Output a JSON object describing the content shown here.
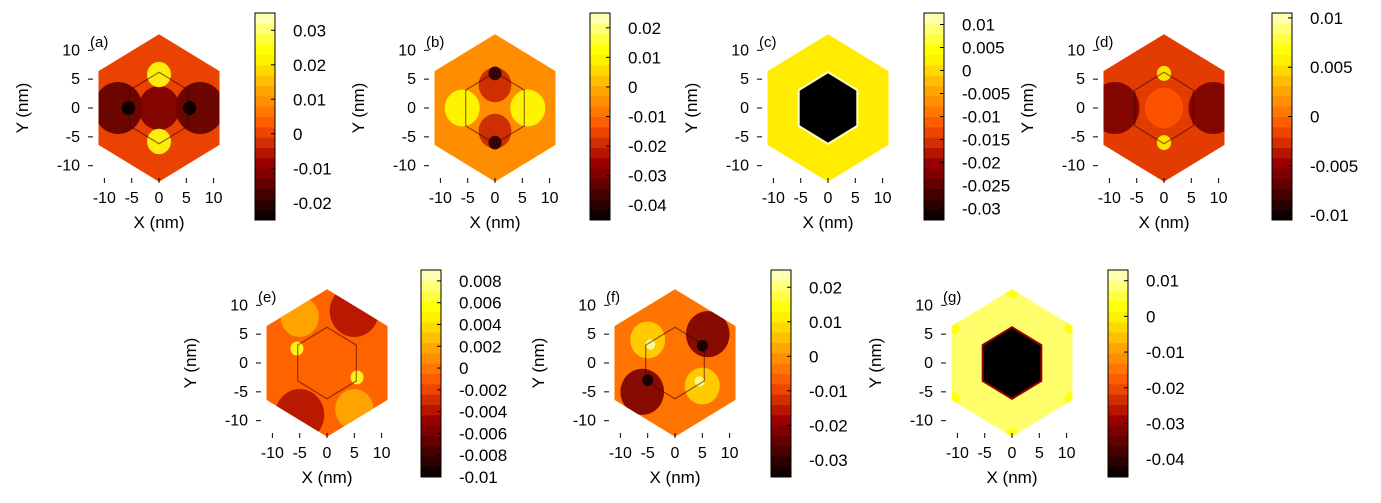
{
  "figure": {
    "panel_count": 7
  },
  "chart_data": [
    {
      "type": "heatmap",
      "panel": "(a)",
      "xlabel": "X (nm)",
      "ylabel": "Y (nm)",
      "xticks": [
        -10,
        -5,
        0,
        5,
        10
      ],
      "yticks": [
        -10,
        -5,
        0,
        5,
        10
      ],
      "xlim": [
        -13,
        13
      ],
      "ylim": [
        -13,
        13
      ],
      "colorbar": {
        "range": [
          -0.025,
          0.035
        ],
        "ticks": [
          "0.03",
          "0.02",
          "0.01",
          "0",
          "-0.01",
          "-0.02"
        ],
        "tick_values": [
          0.03,
          0.02,
          0.01,
          0,
          -0.01,
          -0.02
        ]
      },
      "background_level": 0.0,
      "inner_hexagon": null,
      "features": [
        {
          "kind": "blob",
          "x": -7.5,
          "y": 0,
          "r": 4.5,
          "level": -0.015
        },
        {
          "kind": "blob",
          "x": 7.5,
          "y": 0,
          "r": 4.5,
          "level": -0.015
        },
        {
          "kind": "blob",
          "x": 0,
          "y": 0,
          "r": 3.8,
          "level": -0.012
        },
        {
          "kind": "blob",
          "x": 0,
          "y": 5.8,
          "r": 2.2,
          "level": 0.025
        },
        {
          "kind": "blob",
          "x": 0,
          "y": -5.8,
          "r": 2.2,
          "level": 0.025
        },
        {
          "kind": "blob",
          "x": -5.6,
          "y": 0,
          "r": 1.2,
          "level": -0.025
        },
        {
          "kind": "blob",
          "x": 5.6,
          "y": 0,
          "r": 1.2,
          "level": -0.025
        }
      ]
    },
    {
      "type": "heatmap",
      "panel": "(b)",
      "xlabel": "X (nm)",
      "ylabel": "Y (nm)",
      "xticks": [
        -10,
        -5,
        0,
        5,
        10
      ],
      "yticks": [
        -10,
        -5,
        0,
        5,
        10
      ],
      "xlim": [
        -13,
        13
      ],
      "ylim": [
        -13,
        13
      ],
      "colorbar": {
        "range": [
          -0.045,
          0.025
        ],
        "ticks": [
          "0.02",
          "0.01",
          "0",
          "-0.01",
          "-0.02",
          "-0.03",
          "-0.04"
        ],
        "tick_values": [
          0.02,
          0.01,
          0,
          -0.01,
          -0.02,
          -0.03,
          -0.04
        ]
      },
      "background_level": -0.005,
      "inner_hexagon": null,
      "features": [
        {
          "kind": "blob",
          "x": -6,
          "y": 0,
          "r": 3.2,
          "level": 0.012
        },
        {
          "kind": "blob",
          "x": 6,
          "y": 0,
          "r": 3.2,
          "level": 0.012
        },
        {
          "kind": "blob",
          "x": 0,
          "y": 4,
          "r": 3,
          "level": -0.02
        },
        {
          "kind": "blob",
          "x": 0,
          "y": -4,
          "r": 3,
          "level": -0.02
        },
        {
          "kind": "blob",
          "x": 0,
          "y": 6,
          "r": 1.2,
          "level": -0.04
        },
        {
          "kind": "blob",
          "x": 0,
          "y": -6,
          "r": 1.2,
          "level": -0.04
        }
      ]
    },
    {
      "type": "heatmap",
      "panel": "(c)",
      "xlabel": "X (nm)",
      "ylabel": "Y (nm)",
      "xticks": [
        -10,
        -5,
        0,
        5,
        10
      ],
      "yticks": [
        -10,
        -5,
        0,
        5,
        10
      ],
      "xlim": [
        -13,
        13
      ],
      "ylim": [
        -13,
        13
      ],
      "colorbar": {
        "range": [
          -0.0325,
          0.0125
        ],
        "ticks": [
          "0.01",
          "0.005",
          "0",
          "-0.005",
          "-0.01",
          "-0.015",
          "-0.02",
          "-0.025",
          "-0.03"
        ],
        "tick_values": [
          0.01,
          0.005,
          0,
          -0.005,
          -0.01,
          -0.015,
          -0.02,
          -0.025,
          -0.03
        ]
      },
      "background_level": 0.002,
      "inner_hexagon": {
        "r": 6.2,
        "level": -0.0325,
        "edge_level": 0.012
      },
      "features": []
    },
    {
      "type": "heatmap",
      "panel": "(d)",
      "xlabel": "X (nm)",
      "ylabel": "Y (nm)",
      "xticks": [
        -10,
        -5,
        0,
        5,
        10
      ],
      "yticks": [
        -10,
        -5,
        0,
        5,
        10
      ],
      "xlim": [
        -13,
        13
      ],
      "ylim": [
        -13,
        13
      ],
      "colorbar": {
        "range": [
          -0.0105,
          0.0105
        ],
        "ticks": [
          "0.01",
          "0.005",
          "0",
          "-0.005",
          "-0.01"
        ],
        "tick_values": [
          0.01,
          0.005,
          0,
          -0.005,
          -0.01
        ]
      },
      "background_level": -0.002,
      "inner_hexagon": null,
      "features": [
        {
          "kind": "blob",
          "x": -9,
          "y": 0,
          "r": 4.5,
          "level": -0.006
        },
        {
          "kind": "blob",
          "x": 9,
          "y": 0,
          "r": 4.5,
          "level": -0.006
        },
        {
          "kind": "blob",
          "x": 0,
          "y": 0,
          "r": 3.5,
          "level": -0.001
        },
        {
          "kind": "blob",
          "x": 0,
          "y": 6,
          "r": 1.3,
          "level": 0.006
        },
        {
          "kind": "blob",
          "x": 0,
          "y": -6,
          "r": 1.3,
          "level": 0.006
        }
      ]
    },
    {
      "type": "heatmap",
      "panel": "(e)",
      "xlabel": "X (nm)",
      "ylabel": "Y (nm)",
      "xticks": [
        -10,
        -5,
        0,
        5,
        10
      ],
      "yticks": [
        -10,
        -5,
        0,
        5,
        10
      ],
      "xlim": [
        -13,
        13
      ],
      "ylim": [
        -13,
        13
      ],
      "colorbar": {
        "range": [
          -0.01,
          0.009
        ],
        "ticks": [
          "0.008",
          "0.006",
          "0.004",
          "0.002",
          "0",
          "-0.002",
          "-0.004",
          "-0.006",
          "-0.008",
          "-0.01"
        ],
        "tick_values": [
          0.008,
          0.006,
          0.004,
          0.002,
          0,
          -0.002,
          -0.004,
          -0.006,
          -0.008,
          -0.01
        ]
      },
      "background_level": -0.0008,
      "inner_hexagon": null,
      "features": [
        {
          "kind": "blob",
          "x": 5,
          "y": 9,
          "r": 4.5,
          "level": -0.004
        },
        {
          "kind": "blob",
          "x": -5,
          "y": -9,
          "r": 4.5,
          "level": -0.004
        },
        {
          "kind": "blob",
          "x": -5,
          "y": 8,
          "r": 3.5,
          "level": 0.002
        },
        {
          "kind": "blob",
          "x": 5,
          "y": -8,
          "r": 3.5,
          "level": 0.002
        },
        {
          "kind": "blob",
          "x": -5.5,
          "y": 2.5,
          "r": 1.2,
          "level": 0.006
        },
        {
          "kind": "blob",
          "x": 5.5,
          "y": -2.5,
          "r": 1.2,
          "level": 0.006
        }
      ]
    },
    {
      "type": "heatmap",
      "panel": "(f)",
      "xlabel": "X (nm)",
      "ylabel": "Y (nm)",
      "xticks": [
        -10,
        -5,
        0,
        5,
        10
      ],
      "yticks": [
        -10,
        -5,
        0,
        5,
        10
      ],
      "xlim": [
        -13,
        13
      ],
      "ylim": [
        -13,
        13
      ],
      "colorbar": {
        "range": [
          -0.035,
          0.025
        ],
        "ticks": [
          "0.02",
          "0.01",
          "0",
          "-0.01",
          "-0.02",
          "-0.03"
        ],
        "tick_values": [
          0.02,
          0.01,
          0,
          -0.01,
          -0.02,
          -0.03
        ]
      },
      "background_level": -0.004,
      "inner_hexagon": null,
      "features": [
        {
          "kind": "blob",
          "x": 6,
          "y": 5,
          "r": 4,
          "level": -0.022
        },
        {
          "kind": "blob",
          "x": -6,
          "y": -5,
          "r": 4,
          "level": -0.022
        },
        {
          "kind": "blob",
          "x": 5,
          "y": -4,
          "r": 3.2,
          "level": 0.008
        },
        {
          "kind": "blob",
          "x": -5,
          "y": 4,
          "r": 3.2,
          "level": 0.008
        },
        {
          "kind": "blob",
          "x": 5,
          "y": 3,
          "r": 1,
          "level": -0.034
        },
        {
          "kind": "blob",
          "x": -5,
          "y": -3,
          "r": 1,
          "level": -0.034
        },
        {
          "kind": "blob",
          "x": -4.5,
          "y": 3.2,
          "r": 0.9,
          "level": 0.022
        },
        {
          "kind": "blob",
          "x": 4.5,
          "y": -3.2,
          "r": 0.9,
          "level": 0.022
        }
      ]
    },
    {
      "type": "heatmap",
      "panel": "(g)",
      "xlabel": "X (nm)",
      "ylabel": "Y (nm)",
      "xticks": [
        -10,
        -5,
        0,
        5,
        10
      ],
      "yticks": [
        -10,
        -5,
        0,
        5,
        10
      ],
      "xlim": [
        -13,
        13
      ],
      "ylim": [
        -13,
        13
      ],
      "colorbar": {
        "range": [
          -0.045,
          0.013
        ],
        "ticks": [
          "0.01",
          "0",
          "-0.01",
          "-0.02",
          "-0.03",
          "-0.04"
        ],
        "tick_values": [
          0.01,
          0,
          -0.01,
          -0.02,
          -0.03,
          -0.04
        ]
      },
      "background_level": 0.008,
      "inner_hexagon": {
        "r": 6.2,
        "level": -0.045,
        "edge_level": -0.03
      },
      "features": [
        {
          "kind": "blob",
          "x": 0,
          "y": 12.5,
          "r": 1.2,
          "level": 0.003
        },
        {
          "kind": "blob",
          "x": 0,
          "y": -12.5,
          "r": 1.2,
          "level": 0.003
        },
        {
          "kind": "blob",
          "x": -10.8,
          "y": 6.2,
          "r": 1.2,
          "level": 0.003
        },
        {
          "kind": "blob",
          "x": 10.8,
          "y": 6.2,
          "r": 1.2,
          "level": 0.003
        },
        {
          "kind": "blob",
          "x": -10.8,
          "y": -6.2,
          "r": 1.2,
          "level": 0.003
        },
        {
          "kind": "blob",
          "x": 10.8,
          "y": -6.2,
          "r": 1.2,
          "level": 0.003
        }
      ]
    }
  ]
}
